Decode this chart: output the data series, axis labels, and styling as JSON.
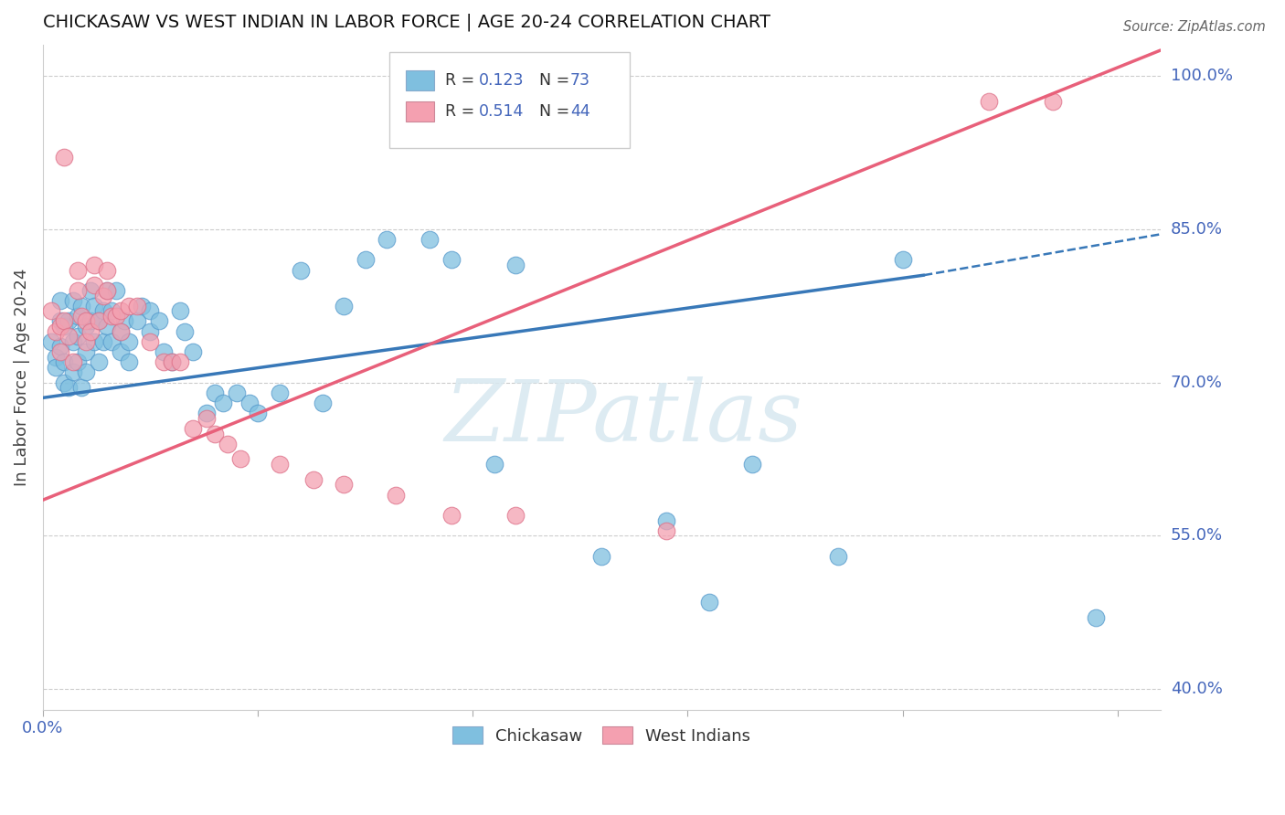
{
  "title": "CHICKASAW VS WEST INDIAN IN LABOR FORCE | AGE 20-24 CORRELATION CHART",
  "source": "Source: ZipAtlas.com",
  "ylabel": "In Labor Force | Age 20-24",
  "xlim": [
    0.0,
    0.26
  ],
  "ylim": [
    0.38,
    1.03
  ],
  "ytick_labels_right": [
    "40.0%",
    "55.0%",
    "70.0%",
    "85.0%",
    "100.0%"
  ],
  "ytick_vals_right": [
    0.4,
    0.55,
    0.7,
    0.85,
    1.0
  ],
  "R_blue": 0.123,
  "N_blue": 73,
  "R_pink": 0.514,
  "N_pink": 44,
  "blue_color": "#7fbfdf",
  "pink_color": "#f4a0b0",
  "blue_line_color": "#3878b8",
  "pink_line_color": "#e8607a",
  "watermark": "ZIPatlas",
  "blue_line_x0": 0.0,
  "blue_line_y0": 0.685,
  "blue_line_x1": 0.205,
  "blue_line_y1": 0.805,
  "blue_line_solid_end": 0.205,
  "blue_line_x2": 0.26,
  "blue_line_y2": 0.845,
  "pink_line_x0": 0.0,
  "pink_line_y0": 0.585,
  "pink_line_x1": 0.26,
  "pink_line_y1": 1.025
}
